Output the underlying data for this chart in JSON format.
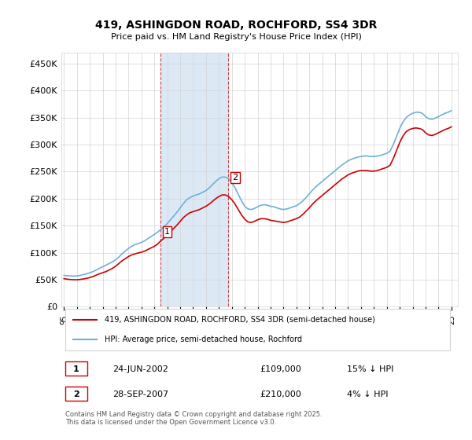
{
  "title": "419, ASHINGDON ROAD, ROCHFORD, SS4 3DR",
  "subtitle": "Price paid vs. HM Land Registry's House Price Index (HPI)",
  "xlabel": "",
  "ylabel": "",
  "ylim": [
    0,
    470000
  ],
  "yticks": [
    0,
    50000,
    100000,
    150000,
    200000,
    250000,
    300000,
    350000,
    400000,
    450000
  ],
  "ytick_labels": [
    "£0",
    "£50K",
    "£100K",
    "£150K",
    "£200K",
    "£250K",
    "£300K",
    "£350K",
    "£400K",
    "£450K"
  ],
  "hpi_color": "#6eb0d8",
  "price_color": "#cc0000",
  "shade_color": "#dce9f5",
  "transaction1_x": 2002.48,
  "transaction1_y": 109000,
  "transaction2_x": 2007.74,
  "transaction2_y": 210000,
  "transaction1_label": "1",
  "transaction2_label": "2",
  "legend_line1": "419, ASHINGDON ROAD, ROCHFORD, SS4 3DR (semi-detached house)",
  "legend_line2": "HPI: Average price, semi-detached house, Rochford",
  "table_row1": [
    "1",
    "24-JUN-2002",
    "£109,000",
    "15% ↓ HPI"
  ],
  "table_row2": [
    "2",
    "28-SEP-2007",
    "£210,000",
    "4% ↓ HPI"
  ],
  "footer": "Contains HM Land Registry data © Crown copyright and database right 2025.\nThis data is licensed under the Open Government Licence v3.0.",
  "hpi_data_x": [
    1995.0,
    1995.25,
    1995.5,
    1995.75,
    1996.0,
    1996.25,
    1996.5,
    1996.75,
    1997.0,
    1997.25,
    1997.5,
    1997.75,
    1998.0,
    1998.25,
    1998.5,
    1998.75,
    1999.0,
    1999.25,
    1999.5,
    1999.75,
    2000.0,
    2000.25,
    2000.5,
    2000.75,
    2001.0,
    2001.25,
    2001.5,
    2001.75,
    2002.0,
    2002.25,
    2002.5,
    2002.75,
    2003.0,
    2003.25,
    2003.5,
    2003.75,
    2004.0,
    2004.25,
    2004.5,
    2004.75,
    2005.0,
    2005.25,
    2005.5,
    2005.75,
    2006.0,
    2006.25,
    2006.5,
    2006.75,
    2007.0,
    2007.25,
    2007.5,
    2007.75,
    2008.0,
    2008.25,
    2008.5,
    2008.75,
    2009.0,
    2009.25,
    2009.5,
    2009.75,
    2010.0,
    2010.25,
    2010.5,
    2010.75,
    2011.0,
    2011.25,
    2011.5,
    2011.75,
    2012.0,
    2012.25,
    2012.5,
    2012.75,
    2013.0,
    2013.25,
    2013.5,
    2013.75,
    2014.0,
    2014.25,
    2014.5,
    2014.75,
    2015.0,
    2015.25,
    2015.5,
    2015.75,
    2016.0,
    2016.25,
    2016.5,
    2016.75,
    2017.0,
    2017.25,
    2017.5,
    2017.75,
    2018.0,
    2018.25,
    2018.5,
    2018.75,
    2019.0,
    2019.25,
    2019.5,
    2019.75,
    2020.0,
    2020.25,
    2020.5,
    2020.75,
    2021.0,
    2021.25,
    2021.5,
    2021.75,
    2022.0,
    2022.25,
    2022.5,
    2022.75,
    2023.0,
    2023.25,
    2023.5,
    2023.75,
    2024.0,
    2024.25,
    2024.5,
    2024.75,
    2025.0
  ],
  "hpi_data_y": [
    58000,
    57500,
    57000,
    56800,
    57000,
    58000,
    59500,
    61000,
    63000,
    65000,
    68000,
    71000,
    74000,
    77000,
    80000,
    83000,
    87000,
    92000,
    98000,
    103000,
    108000,
    112000,
    115000,
    117000,
    119000,
    122000,
    126000,
    130000,
    134000,
    138000,
    143000,
    148000,
    154000,
    161000,
    168000,
    175000,
    183000,
    191000,
    198000,
    202000,
    205000,
    207000,
    209000,
    212000,
    215000,
    220000,
    226000,
    232000,
    237000,
    240000,
    240000,
    237000,
    230000,
    220000,
    208000,
    196000,
    186000,
    181000,
    180000,
    182000,
    185000,
    188000,
    189000,
    188000,
    186000,
    185000,
    183000,
    181000,
    180000,
    181000,
    183000,
    185000,
    187000,
    191000,
    196000,
    202000,
    209000,
    216000,
    222000,
    227000,
    232000,
    237000,
    242000,
    247000,
    252000,
    257000,
    262000,
    266000,
    270000,
    273000,
    275000,
    277000,
    278000,
    279000,
    279000,
    278000,
    278000,
    279000,
    280000,
    282000,
    284000,
    288000,
    300000,
    315000,
    330000,
    342000,
    350000,
    355000,
    358000,
    360000,
    360000,
    358000,
    352000,
    348000,
    347000,
    349000,
    352000,
    355000,
    358000,
    360000,
    363000
  ],
  "price_data_x": [
    1995.0,
    1995.25,
    1995.5,
    1995.75,
    1996.0,
    1996.25,
    1996.5,
    1996.75,
    1997.0,
    1997.25,
    1997.5,
    1997.75,
    1998.0,
    1998.25,
    1998.5,
    1998.75,
    1999.0,
    1999.25,
    1999.5,
    1999.75,
    2000.0,
    2000.25,
    2000.5,
    2000.75,
    2001.0,
    2001.25,
    2001.5,
    2001.75,
    2002.0,
    2002.25,
    2002.5,
    2002.75,
    2003.0,
    2003.25,
    2003.5,
    2003.75,
    2004.0,
    2004.25,
    2004.5,
    2004.75,
    2005.0,
    2005.25,
    2005.5,
    2005.75,
    2006.0,
    2006.25,
    2006.5,
    2006.75,
    2007.0,
    2007.25,
    2007.5,
    2007.75,
    2008.0,
    2008.25,
    2008.5,
    2008.75,
    2009.0,
    2009.25,
    2009.5,
    2009.75,
    2010.0,
    2010.25,
    2010.5,
    2010.75,
    2011.0,
    2011.25,
    2011.5,
    2011.75,
    2012.0,
    2012.25,
    2012.5,
    2012.75,
    2013.0,
    2013.25,
    2013.5,
    2013.75,
    2014.0,
    2014.25,
    2014.5,
    2014.75,
    2015.0,
    2015.25,
    2015.5,
    2015.75,
    2016.0,
    2016.25,
    2016.5,
    2016.75,
    2017.0,
    2017.25,
    2017.5,
    2017.75,
    2018.0,
    2018.25,
    2018.5,
    2018.75,
    2019.0,
    2019.25,
    2019.5,
    2019.75,
    2020.0,
    2020.25,
    2020.5,
    2020.75,
    2021.0,
    2021.25,
    2021.5,
    2021.75,
    2022.0,
    2022.25,
    2022.5,
    2022.75,
    2023.0,
    2023.25,
    2023.5,
    2023.75,
    2024.0,
    2024.25,
    2024.5,
    2024.75,
    2025.0
  ],
  "price_data_y": [
    52000,
    51000,
    50500,
    50000,
    50000,
    50500,
    51500,
    52500,
    54000,
    56000,
    58500,
    61000,
    63000,
    65000,
    68000,
    71000,
    75000,
    80000,
    85000,
    89000,
    93000,
    96000,
    98000,
    99500,
    101000,
    103000,
    106000,
    109000,
    112000,
    116000,
    122000,
    127000,
    133000,
    139000,
    145000,
    151000,
    158000,
    165000,
    170000,
    174000,
    176000,
    178000,
    180000,
    183000,
    186000,
    190000,
    195000,
    200000,
    204000,
    207000,
    207000,
    204000,
    198000,
    190000,
    180000,
    170000,
    162000,
    157000,
    156000,
    158000,
    161000,
    163000,
    163000,
    162000,
    160000,
    159000,
    158000,
    157000,
    156000,
    157000,
    159000,
    161000,
    163000,
    166000,
    171000,
    177000,
    183000,
    190000,
    196000,
    201000,
    206000,
    211000,
    216000,
    221000,
    226000,
    231000,
    236000,
    240000,
    244000,
    247000,
    249000,
    251000,
    252000,
    252000,
    252000,
    251000,
    251000,
    252000,
    254000,
    256000,
    258000,
    262000,
    274000,
    289000,
    304000,
    316000,
    324000,
    328000,
    330000,
    331000,
    330000,
    328000,
    322000,
    318000,
    317000,
    319000,
    322000,
    325000,
    328000,
    330000,
    333000
  ],
  "xtick_years": [
    1995,
    1996,
    1997,
    1998,
    1999,
    2000,
    2001,
    2002,
    2003,
    2004,
    2005,
    2006,
    2007,
    2008,
    2009,
    2010,
    2011,
    2012,
    2013,
    2014,
    2015,
    2016,
    2017,
    2018,
    2019,
    2020,
    2021,
    2022,
    2023,
    2024,
    2025
  ],
  "xlim": [
    1994.8,
    2025.5
  ]
}
